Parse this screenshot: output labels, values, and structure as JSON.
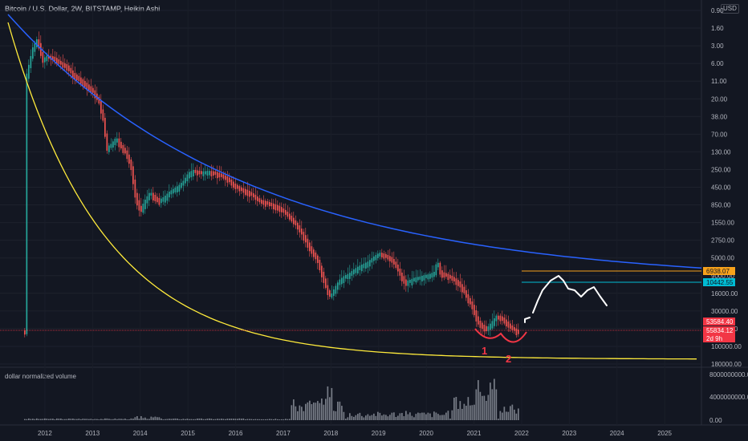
{
  "header": {
    "title": "Bitcoin / U.S. Dollar, 2W, BITSTAMP, Heikin Ashi",
    "currency": "USD"
  },
  "volume_pane": {
    "label": "dollar normalized volume"
  },
  "chart_data": {
    "type": "candlestick",
    "price_axis_ticks": [
      "0.90",
      "1.60",
      "3.00",
      "6.00",
      "11.00",
      "20.00",
      "38.00",
      "70.00",
      "130.00",
      "250.00",
      "450.00",
      "850.00",
      "1550.00",
      "2750.00",
      "5000.00",
      "9000.00",
      "16000.00",
      "30000.00",
      "55000.00",
      "100000.00",
      "180000.00"
    ],
    "volume_axis_ticks": [
      "8000000000.00",
      "4000000000.00",
      "0.00"
    ],
    "x_axis_ticks": [
      "2012",
      "2013",
      "2014",
      "2015",
      "2016",
      "2017",
      "2018",
      "2019",
      "2020",
      "2021",
      "2022",
      "2023",
      "2024",
      "2025"
    ],
    "price_tags": [
      {
        "label": "6938.07",
        "color": "#f7a21b",
        "text_color": "#131722"
      },
      {
        "label": "10442.55",
        "color": "#00bcd4",
        "text_color": "#131722"
      },
      {
        "label": "53584.40",
        "color": "#f23645",
        "text_color": "#ffffff"
      },
      {
        "label": "55834.12",
        "color": "#f23645",
        "text_color": "#ffffff"
      },
      {
        "label": "2d 9h",
        "color": "#f23645",
        "text_color": "#ffffff"
      }
    ],
    "annotations": [
      "1",
      "2"
    ],
    "colors": {
      "up": "#26a69a",
      "down": "#ef5350",
      "upper_curve": "#2962ff",
      "lower_curve": "#ffeb3b",
      "drawing": "#ffffff",
      "marks": "#f23645"
    },
    "axis_inverted": true,
    "log_scale": true
  }
}
